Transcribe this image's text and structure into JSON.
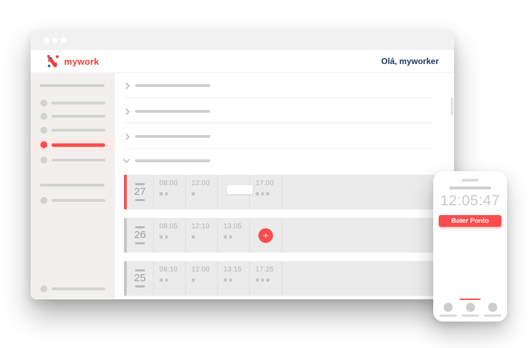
{
  "colors": {
    "accent": "#fb4d4d",
    "accent_soft": "#fcebe9",
    "navy": "#1c3b63",
    "logo_red": "#ef4136",
    "logo_blue": "#2f6cb3",
    "skeleton_gray": "#d2d2d2",
    "row_gray": "#ebebeb"
  },
  "header": {
    "logo_text": "mywork",
    "greeting": "Olá, myworker"
  },
  "icons": {
    "logo": "mywork-logo",
    "collapsed": "chevron-right",
    "expanded": "chevron-down",
    "add": "+",
    "window_controls": "traffic-dots"
  },
  "timesheet": {
    "rows": [
      {
        "day": "27",
        "highlight": "red",
        "entries": [
          {
            "time": "08:00",
            "dots": 2
          },
          {
            "time": "12:00",
            "dots": 1
          },
          {
            "time": "",
            "dots": 0,
            "empty_input": true
          },
          {
            "time": "17:00",
            "dots": 3
          }
        ]
      },
      {
        "day": "26",
        "highlight": "gray",
        "entries": [
          {
            "time": "08:05",
            "dots": 2
          },
          {
            "time": "12:10",
            "dots": 1
          },
          {
            "time": "13:05",
            "dots": 2
          },
          {
            "add_button": true
          }
        ]
      },
      {
        "day": "25",
        "highlight": "gray",
        "entries": [
          {
            "time": "08:10",
            "dots": 2
          },
          {
            "time": "12:00",
            "dots": 1
          },
          {
            "time": "13:15",
            "dots": 2
          },
          {
            "time": "17:25",
            "dots": 3
          }
        ]
      }
    ]
  },
  "phone": {
    "clock": "12:05:47",
    "button_label": "Bater Ponto"
  }
}
